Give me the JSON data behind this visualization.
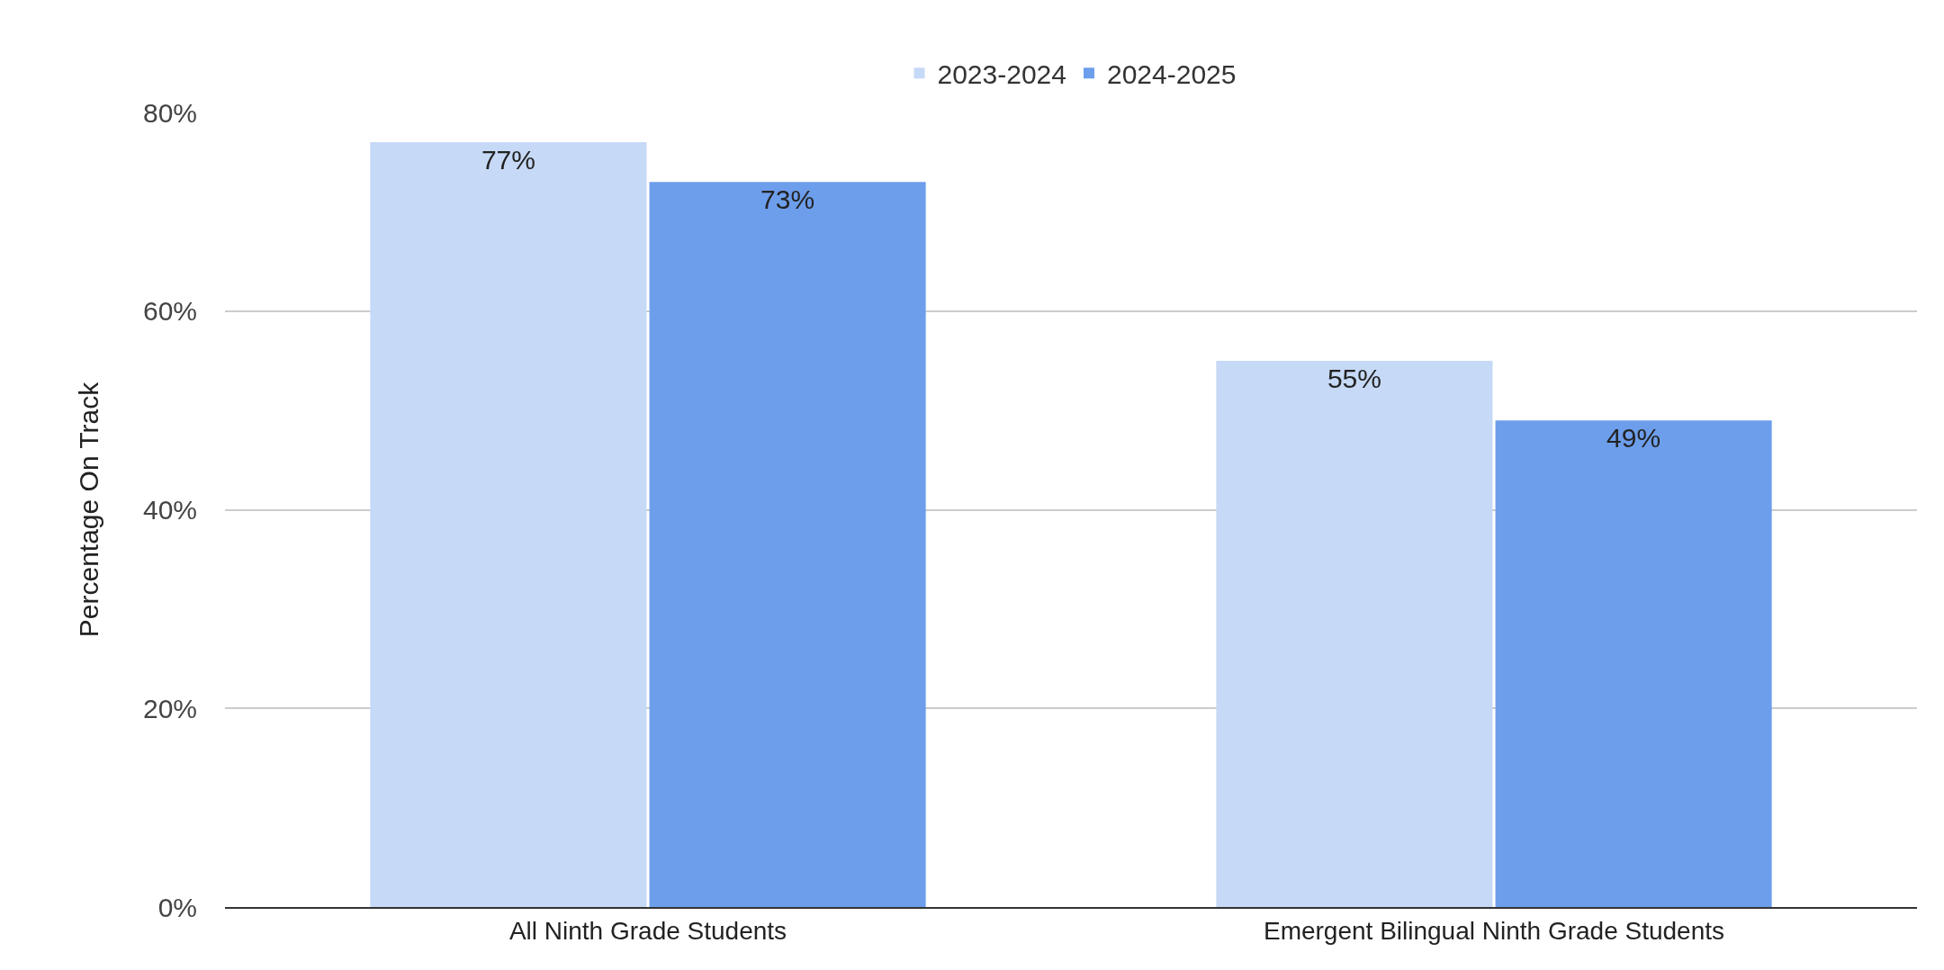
{
  "chart_data": {
    "type": "bar",
    "ylabel": "Percentage On Track",
    "categories": [
      "All Ninth Grade Students",
      "Emergent Bilingual Ninth Grade Students"
    ],
    "series": [
      {
        "name": "2023-2024",
        "color": "#c6d9f6",
        "values": [
          77,
          55
        ],
        "value_labels": [
          "77%",
          "55%"
        ]
      },
      {
        "name": "2024-2025",
        "color": "#6d9eeb",
        "values": [
          73,
          49
        ],
        "value_labels": [
          "73%",
          "49%"
        ]
      }
    ],
    "ylim": [
      0,
      80
    ],
    "yticks": [
      {
        "value": 0,
        "label": "0%"
      },
      {
        "value": 20,
        "label": "20%"
      },
      {
        "value": 40,
        "label": "40%"
      },
      {
        "value": 60,
        "label": "60%"
      },
      {
        "value": 80,
        "label": "80%"
      }
    ],
    "grid": "y",
    "legend": "top"
  }
}
